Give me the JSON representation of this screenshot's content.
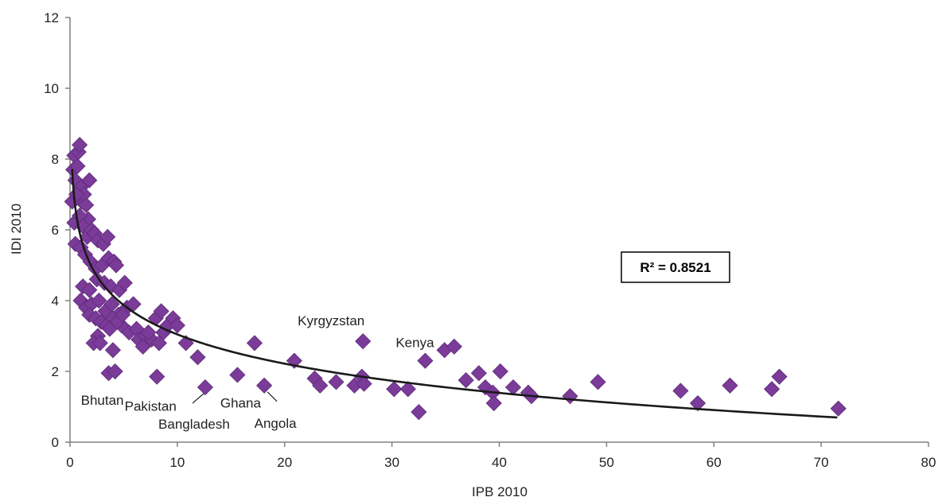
{
  "chart_data": {
    "type": "scatter",
    "title": "",
    "xlabel": "IPB 2010",
    "ylabel": "IDI 2010",
    "xlim": [
      0,
      80
    ],
    "ylim": [
      0,
      12
    ],
    "x_ticks": [
      "0",
      "10",
      "20",
      "30",
      "40",
      "50",
      "60",
      "70",
      "80"
    ],
    "y_ticks": [
      "0",
      "2",
      "4",
      "6",
      "8",
      "10",
      "12"
    ],
    "grid": false,
    "marker": "diamond",
    "marker_color": "#7b3b99",
    "trendline": {
      "type": "logarithmic",
      "x_range": [
        0.2,
        71.5
      ],
      "r_squared_label": "R² = 0.8521",
      "color": "#1a1a1a"
    },
    "points": [
      [
        0.3,
        7.7
      ],
      [
        0.4,
        8.1
      ],
      [
        0.5,
        7.4
      ],
      [
        0.6,
        6.9
      ],
      [
        0.4,
        6.2
      ],
      [
        0.8,
        8.2
      ],
      [
        0.9,
        8.4
      ],
      [
        0.5,
        5.6
      ],
      [
        0.7,
        7.8
      ],
      [
        1.0,
        7.2
      ],
      [
        1.1,
        6.8
      ],
      [
        1.3,
        7.0
      ],
      [
        1.5,
        6.7
      ],
      [
        1.7,
        6.3
      ],
      [
        1.8,
        7.4
      ],
      [
        0.2,
        6.8
      ],
      [
        0.6,
        7.0
      ],
      [
        0.9,
        6.4
      ],
      [
        1.2,
        6.1
      ],
      [
        1.6,
        5.8
      ],
      [
        2.0,
        6.0
      ],
      [
        2.3,
        5.9
      ],
      [
        2.6,
        5.7
      ],
      [
        3.1,
        5.6
      ],
      [
        3.5,
        5.8
      ],
      [
        1.0,
        5.5
      ],
      [
        1.4,
        5.3
      ],
      [
        1.9,
        5.1
      ],
      [
        2.4,
        4.9
      ],
      [
        3.0,
        5.0
      ],
      [
        3.6,
        5.2
      ],
      [
        4.1,
        5.1
      ],
      [
        4.3,
        5.0
      ],
      [
        1.2,
        4.4
      ],
      [
        1.8,
        4.3
      ],
      [
        2.5,
        4.6
      ],
      [
        3.2,
        4.5
      ],
      [
        3.8,
        4.4
      ],
      [
        4.6,
        4.3
      ],
      [
        5.1,
        4.5
      ],
      [
        1.0,
        4.0
      ],
      [
        1.5,
        3.8
      ],
      [
        2.0,
        3.9
      ],
      [
        2.7,
        4.0
      ],
      [
        3.3,
        3.7
      ],
      [
        3.9,
        3.9
      ],
      [
        4.5,
        3.6
      ],
      [
        5.3,
        3.8
      ],
      [
        5.9,
        3.9
      ],
      [
        1.8,
        3.6
      ],
      [
        2.4,
        3.5
      ],
      [
        2.9,
        3.4
      ],
      [
        3.4,
        3.3
      ],
      [
        4.0,
        3.5
      ],
      [
        4.8,
        3.3
      ],
      [
        5.5,
        3.1
      ],
      [
        6.2,
        3.2
      ],
      [
        2.6,
        3.0
      ],
      [
        3.7,
        3.2
      ],
      [
        4.4,
        3.4
      ],
      [
        4.9,
        3.6
      ],
      [
        6.4,
        2.9
      ],
      [
        7.0,
        3.0
      ],
      [
        7.6,
        2.9
      ],
      [
        2.2,
        2.8
      ],
      [
        2.8,
        2.8
      ],
      [
        4.0,
        2.6
      ],
      [
        6.8,
        2.7
      ],
      [
        7.3,
        3.1
      ],
      [
        8.0,
        3.5
      ],
      [
        8.5,
        3.7
      ],
      [
        8.7,
        3.1
      ],
      [
        9.1,
        3.3
      ],
      [
        9.6,
        3.5
      ],
      [
        10.0,
        3.3
      ],
      [
        8.3,
        2.8
      ],
      [
        10.8,
        2.8
      ],
      [
        11.9,
        2.4
      ],
      [
        3.6,
        1.95
      ],
      [
        4.2,
        2.0
      ],
      [
        8.1,
        1.85
      ],
      [
        12.6,
        1.55
      ],
      [
        15.6,
        1.9
      ],
      [
        17.2,
        2.8
      ],
      [
        18.1,
        1.6
      ],
      [
        20.9,
        2.3
      ],
      [
        22.8,
        1.8
      ],
      [
        23.3,
        1.6
      ],
      [
        24.8,
        1.7
      ],
      [
        26.5,
        1.6
      ],
      [
        27.2,
        1.85
      ],
      [
        27.4,
        1.65
      ],
      [
        27.3,
        2.85
      ],
      [
        30.2,
        1.5
      ],
      [
        31.5,
        1.5
      ],
      [
        32.5,
        0.85
      ],
      [
        33.1,
        2.3
      ],
      [
        34.9,
        2.6
      ],
      [
        35.8,
        2.7
      ],
      [
        36.9,
        1.75
      ],
      [
        38.1,
        1.95
      ],
      [
        38.7,
        1.55
      ],
      [
        39.4,
        1.4
      ],
      [
        39.5,
        1.1
      ],
      [
        40.1,
        2.0
      ],
      [
        41.3,
        1.55
      ],
      [
        42.7,
        1.4
      ],
      [
        43.0,
        1.3
      ],
      [
        46.6,
        1.3
      ],
      [
        49.2,
        1.7
      ],
      [
        56.9,
        1.45
      ],
      [
        58.5,
        1.1
      ],
      [
        61.5,
        1.6
      ],
      [
        65.4,
        1.5
      ],
      [
        66.1,
        1.85
      ],
      [
        71.6,
        0.95
      ]
    ],
    "annotations": [
      {
        "text": "Bhutan",
        "x": 3.6,
        "y": 1.95
      },
      {
        "text": "Pakistan",
        "x": 8.1,
        "y": 1.85
      },
      {
        "text": "Bangladesh",
        "x": 12.6,
        "y": 1.55
      },
      {
        "text": "Ghana",
        "x": 15.6,
        "y": 1.9
      },
      {
        "text": "Angola",
        "x": 18.1,
        "y": 1.6
      },
      {
        "text": "Kyrgyzstan",
        "x": 27.3,
        "y": 2.85
      },
      {
        "text": "Kenya",
        "x": 33.1,
        "y": 2.3
      }
    ]
  }
}
